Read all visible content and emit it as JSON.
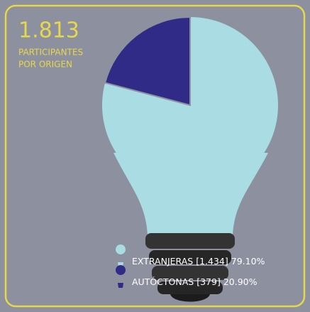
{
  "chart_data": {
    "type": "pie",
    "title": "1.813",
    "subtitle": [
      "PARTICIPANTES",
      "POR ORIGEN"
    ],
    "categories": [
      "EXTRANJERAS",
      "AUTÓCTONAS"
    ],
    "count_labels": [
      "[1.434]",
      "[379]"
    ],
    "values": [
      79.1,
      20.9
    ],
    "value_labels": [
      "79.10%",
      "20.90%"
    ],
    "colors": [
      "#a9dde3",
      "#2f2b86"
    ]
  }
}
